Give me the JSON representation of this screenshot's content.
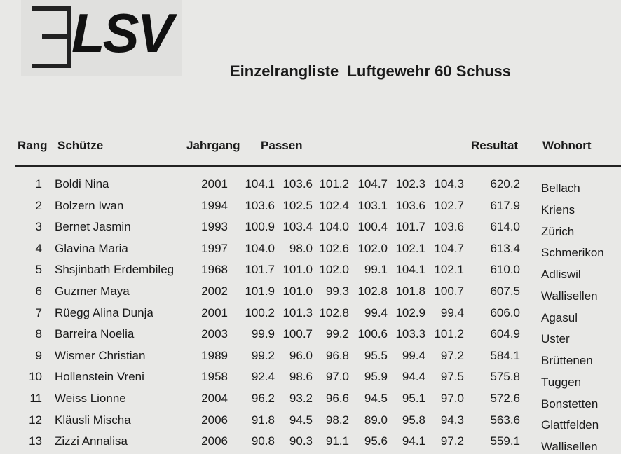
{
  "logo": "LSV",
  "title": "Einzelrangliste  Luftgewehr 60 Schuss",
  "table": {
    "header": [
      "Rang",
      "Schütze",
      "Jahrgang",
      "Passen",
      "Resultat",
      "Wohnort"
    ],
    "rows": [
      [
        "1",
        "Boldi Nina",
        "2001",
        "104.1",
        "103.6",
        "101.2",
        "104.7",
        "102.3",
        "104.3",
        "620.2",
        "Bellach"
      ],
      [
        "2",
        "Bolzern Iwan",
        "1994",
        "103.6",
        "102.5",
        "102.4",
        "103.1",
        "103.6",
        "102.7",
        "617.9",
        "Kriens"
      ],
      [
        "3",
        "Bernet Jasmin",
        "1993",
        "100.9",
        "103.4",
        "104.0",
        "100.4",
        "101.7",
        "103.6",
        "614.0",
        "Zürich"
      ],
      [
        "4",
        "Glavina Maria",
        "1997",
        "104.0",
        "98.0",
        "102.6",
        "102.0",
        "102.1",
        "104.7",
        "613.4",
        "Schmerikon"
      ],
      [
        "5",
        "Shsjinbath Erdembileg",
        "1968",
        "101.7",
        "101.0",
        "102.0",
        "99.1",
        "104.1",
        "102.1",
        "610.0",
        "Adliswil"
      ],
      [
        "6",
        "Guzmer Maya",
        "2002",
        "101.9",
        "101.0",
        "99.3",
        "102.8",
        "101.8",
        "100.7",
        "607.5",
        "Wallisellen"
      ],
      [
        "7",
        "Rüegg Alina Dunja",
        "2001",
        "100.2",
        "101.3",
        "102.8",
        "99.4",
        "102.9",
        "99.4",
        "606.0",
        "Agasul"
      ],
      [
        "8",
        "Barreira Noelia",
        "2003",
        "99.9",
        "100.7",
        "99.2",
        "100.6",
        "103.3",
        "101.2",
        "604.9",
        "Uster"
      ],
      [
        "9",
        "Wismer Christian",
        "1989",
        "99.2",
        "96.0",
        "96.8",
        "95.5",
        "99.4",
        "97.2",
        "584.1",
        "Brüttenen"
      ],
      [
        "10",
        "Hollenstein Vreni",
        "1958",
        "92.4",
        "98.6",
        "97.0",
        "95.9",
        "94.4",
        "97.5",
        "575.8",
        "Tuggen"
      ],
      [
        "11",
        "Weiss Lionne",
        "2004",
        "96.2",
        "93.2",
        "96.6",
        "94.5",
        "95.1",
        "97.0",
        "572.6",
        "Bonstetten"
      ],
      [
        "12",
        "Kläusli Mischa",
        "2006",
        "91.8",
        "94.5",
        "98.2",
        "89.0",
        "95.8",
        "94.3",
        "563.6",
        "Glattfelden"
      ],
      [
        "13",
        "Zizzi Annalisa",
        "2006",
        "90.8",
        "90.3",
        "91.1",
        "95.6",
        "94.1",
        "97.2",
        "559.1",
        "Wallisellen"
      ]
    ]
  }
}
